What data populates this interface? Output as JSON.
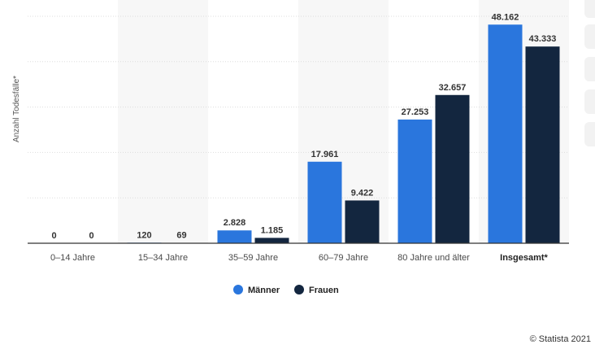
{
  "chart_data": {
    "type": "bar",
    "categories": [
      "0–14 Jahre",
      "15–34 Jahre",
      "35–59 Jahre",
      "60–79 Jahre",
      "80 Jahre und älter",
      "Insgesamt*"
    ],
    "bold_categories": [
      "Insgesamt*"
    ],
    "series": [
      {
        "name": "Männer",
        "values": [
          0,
          120,
          2828,
          17961,
          27253,
          48162
        ],
        "labels": [
          "0",
          "120",
          "2.828",
          "17.961",
          "27.253",
          "48.162"
        ],
        "color": "#2a76dd"
      },
      {
        "name": "Frauen",
        "values": [
          0,
          69,
          1185,
          9422,
          32657,
          43333
        ],
        "labels": [
          "0",
          "69",
          "1.185",
          "9.422",
          "32.657",
          "43.333"
        ],
        "color": "#13263f"
      }
    ],
    "ylabel": "Anzahl Todesfälle*",
    "ylim": [
      0,
      50000
    ],
    "grid": true,
    "legend": "bottom-center",
    "alternating_band_color": "#f7f7f7"
  },
  "credit": "© Statista 2021"
}
